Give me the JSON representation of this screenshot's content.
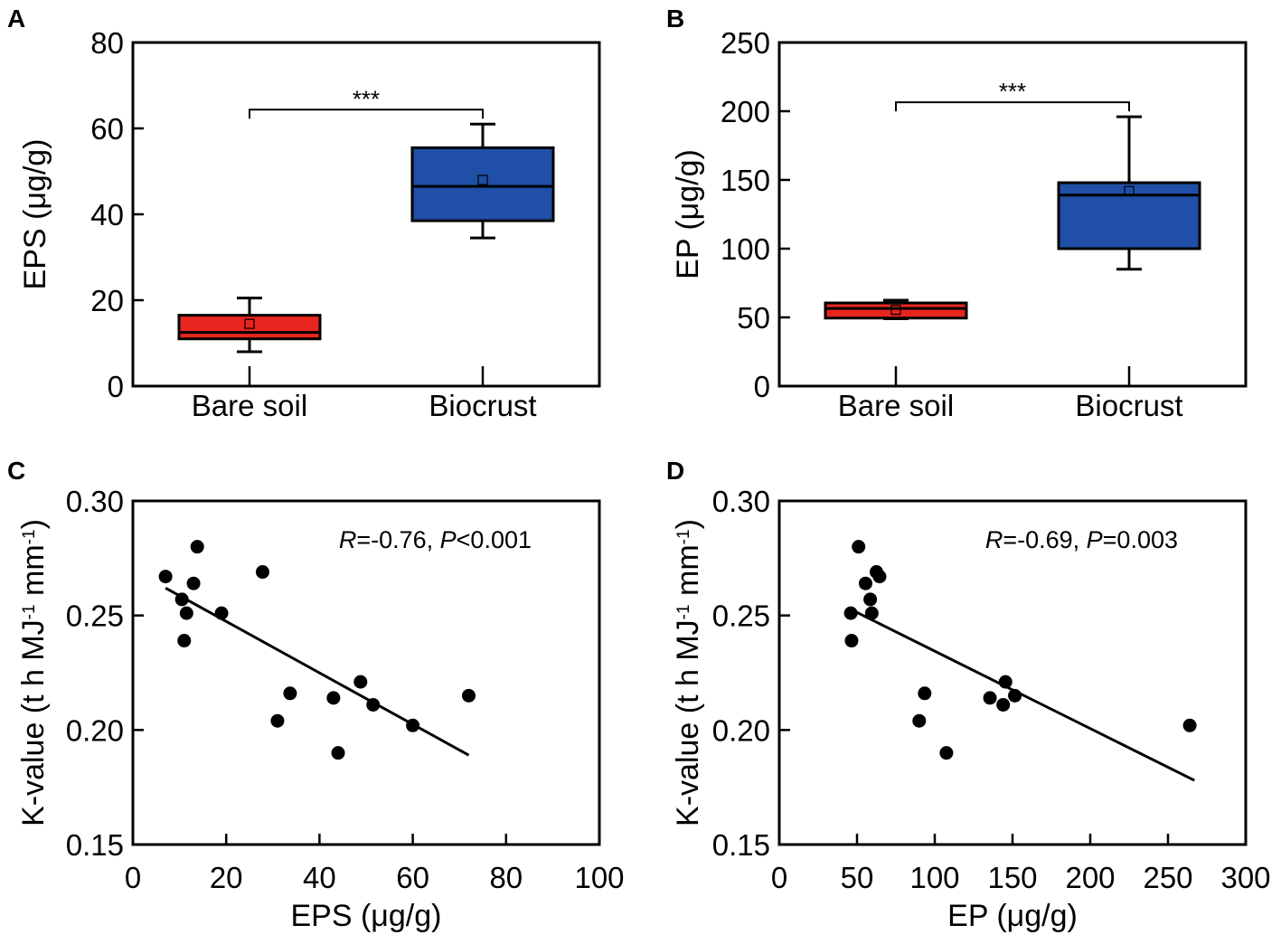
{
  "chart_data": [
    {
      "panel": "A",
      "type": "box",
      "categories": [
        "Bare soil",
        "Biocrust"
      ],
      "ylabel": "EPS (μg/g)",
      "xlabel": "",
      "ylim": [
        0,
        80
      ],
      "yticks": [
        0,
        20,
        40,
        60,
        80
      ],
      "ytick_labels": [
        "0",
        "20",
        "40",
        "60",
        "80"
      ],
      "boxes": [
        {
          "category": "Bare soil",
          "min": 8,
          "q1": 11,
          "median": 12.5,
          "q3": 16.5,
          "max": 20.5,
          "mean": 14.5,
          "color": "#e8261f"
        },
        {
          "category": "Biocrust",
          "min": 34.5,
          "q1": 38.5,
          "median": 46.5,
          "q3": 55.5,
          "max": 61,
          "mean": 48,
          "color": "#1f4fa6"
        }
      ],
      "significance": "***"
    },
    {
      "panel": "B",
      "type": "box",
      "categories": [
        "Bare soil",
        "Biocrust"
      ],
      "ylabel": "EP (μg/g)",
      "xlabel": "",
      "ylim": [
        0,
        250
      ],
      "yticks": [
        0,
        50,
        100,
        150,
        200,
        250
      ],
      "ytick_labels": [
        "0",
        "50",
        "100",
        "150",
        "200",
        "250"
      ],
      "boxes": [
        {
          "category": "Bare soil",
          "min": 49,
          "q1": 49.5,
          "median": 56.5,
          "q3": 60.5,
          "max": 62.5,
          "mean": 55.5,
          "color": "#e8261f"
        },
        {
          "category": "Biocrust",
          "min": 85,
          "q1": 100,
          "median": 139,
          "q3": 148,
          "max": 196,
          "mean": 142,
          "color": "#1f4fa6"
        }
      ],
      "significance": "***"
    },
    {
      "panel": "C",
      "type": "scatter",
      "xlabel": "EPS (μg/g)",
      "ylabel": "K-value (t h MJ",
      "ylabel_sup1": "-1",
      "ylabel_mid": " mm",
      "ylabel_sup2": "-1",
      "ylabel_end": ")",
      "xlim": [
        0,
        100
      ],
      "ylim": [
        0.15,
        0.3
      ],
      "xticks": [
        0,
        20,
        40,
        60,
        80,
        100
      ],
      "xtick_labels": [
        "0",
        "20",
        "40",
        "60",
        "80",
        "100"
      ],
      "yticks": [
        0.15,
        0.2,
        0.25,
        0.3
      ],
      "ytick_labels": [
        "0.15",
        "0.20",
        "0.25",
        "0.30"
      ],
      "points": [
        [
          7,
          0.267
        ],
        [
          10.5,
          0.257
        ],
        [
          11.5,
          0.251
        ],
        [
          11,
          0.239
        ],
        [
          13,
          0.264
        ],
        [
          13.8,
          0.28
        ],
        [
          19,
          0.251
        ],
        [
          27.8,
          0.269
        ],
        [
          31,
          0.204
        ],
        [
          33.7,
          0.216
        ],
        [
          43,
          0.214
        ],
        [
          44,
          0.19
        ],
        [
          48.8,
          0.221
        ],
        [
          51.5,
          0.211
        ],
        [
          60,
          0.202
        ],
        [
          72,
          0.215
        ]
      ],
      "fit_line": [
        [
          7,
          0.262
        ],
        [
          72,
          0.189
        ]
      ],
      "annotation": {
        "r_label": "R",
        "r_value": "=-0.76, ",
        "p_label": "P",
        "p_value": "<0.001"
      }
    },
    {
      "panel": "D",
      "type": "scatter",
      "xlabel": "EP (μg/g)",
      "ylabel": "K-value (t h MJ",
      "ylabel_sup1": "-1",
      "ylabel_mid": " mm",
      "ylabel_sup2": "-1",
      "ylabel_end": ")",
      "xlim": [
        0,
        300
      ],
      "ylim": [
        0.15,
        0.3
      ],
      "xticks": [
        0,
        50,
        100,
        150,
        200,
        250,
        300
      ],
      "xtick_labels": [
        "0",
        "50",
        "100",
        "150",
        "200",
        "250",
        "300"
      ],
      "yticks": [
        0.15,
        0.2,
        0.25,
        0.3
      ],
      "ytick_labels": [
        "0.15",
        "0.20",
        "0.25",
        "0.30"
      ],
      "points": [
        [
          46,
          0.251
        ],
        [
          46.5,
          0.239
        ],
        [
          51,
          0.28
        ],
        [
          55.5,
          0.264
        ],
        [
          58.5,
          0.257
        ],
        [
          59.5,
          0.251
        ],
        [
          62.5,
          0.269
        ],
        [
          64.5,
          0.267
        ],
        [
          90,
          0.204
        ],
        [
          93.5,
          0.216
        ],
        [
          107.5,
          0.19
        ],
        [
          135.5,
          0.214
        ],
        [
          144,
          0.211
        ],
        [
          145.5,
          0.221
        ],
        [
          151.5,
          0.215
        ],
        [
          264,
          0.202
        ]
      ],
      "fit_line": [
        [
          45,
          0.253
        ],
        [
          267,
          0.178
        ]
      ],
      "annotation": {
        "r_label": "R",
        "r_value": "=-0.69, ",
        "p_label": "P",
        "p_value": "=0.003"
      }
    }
  ]
}
